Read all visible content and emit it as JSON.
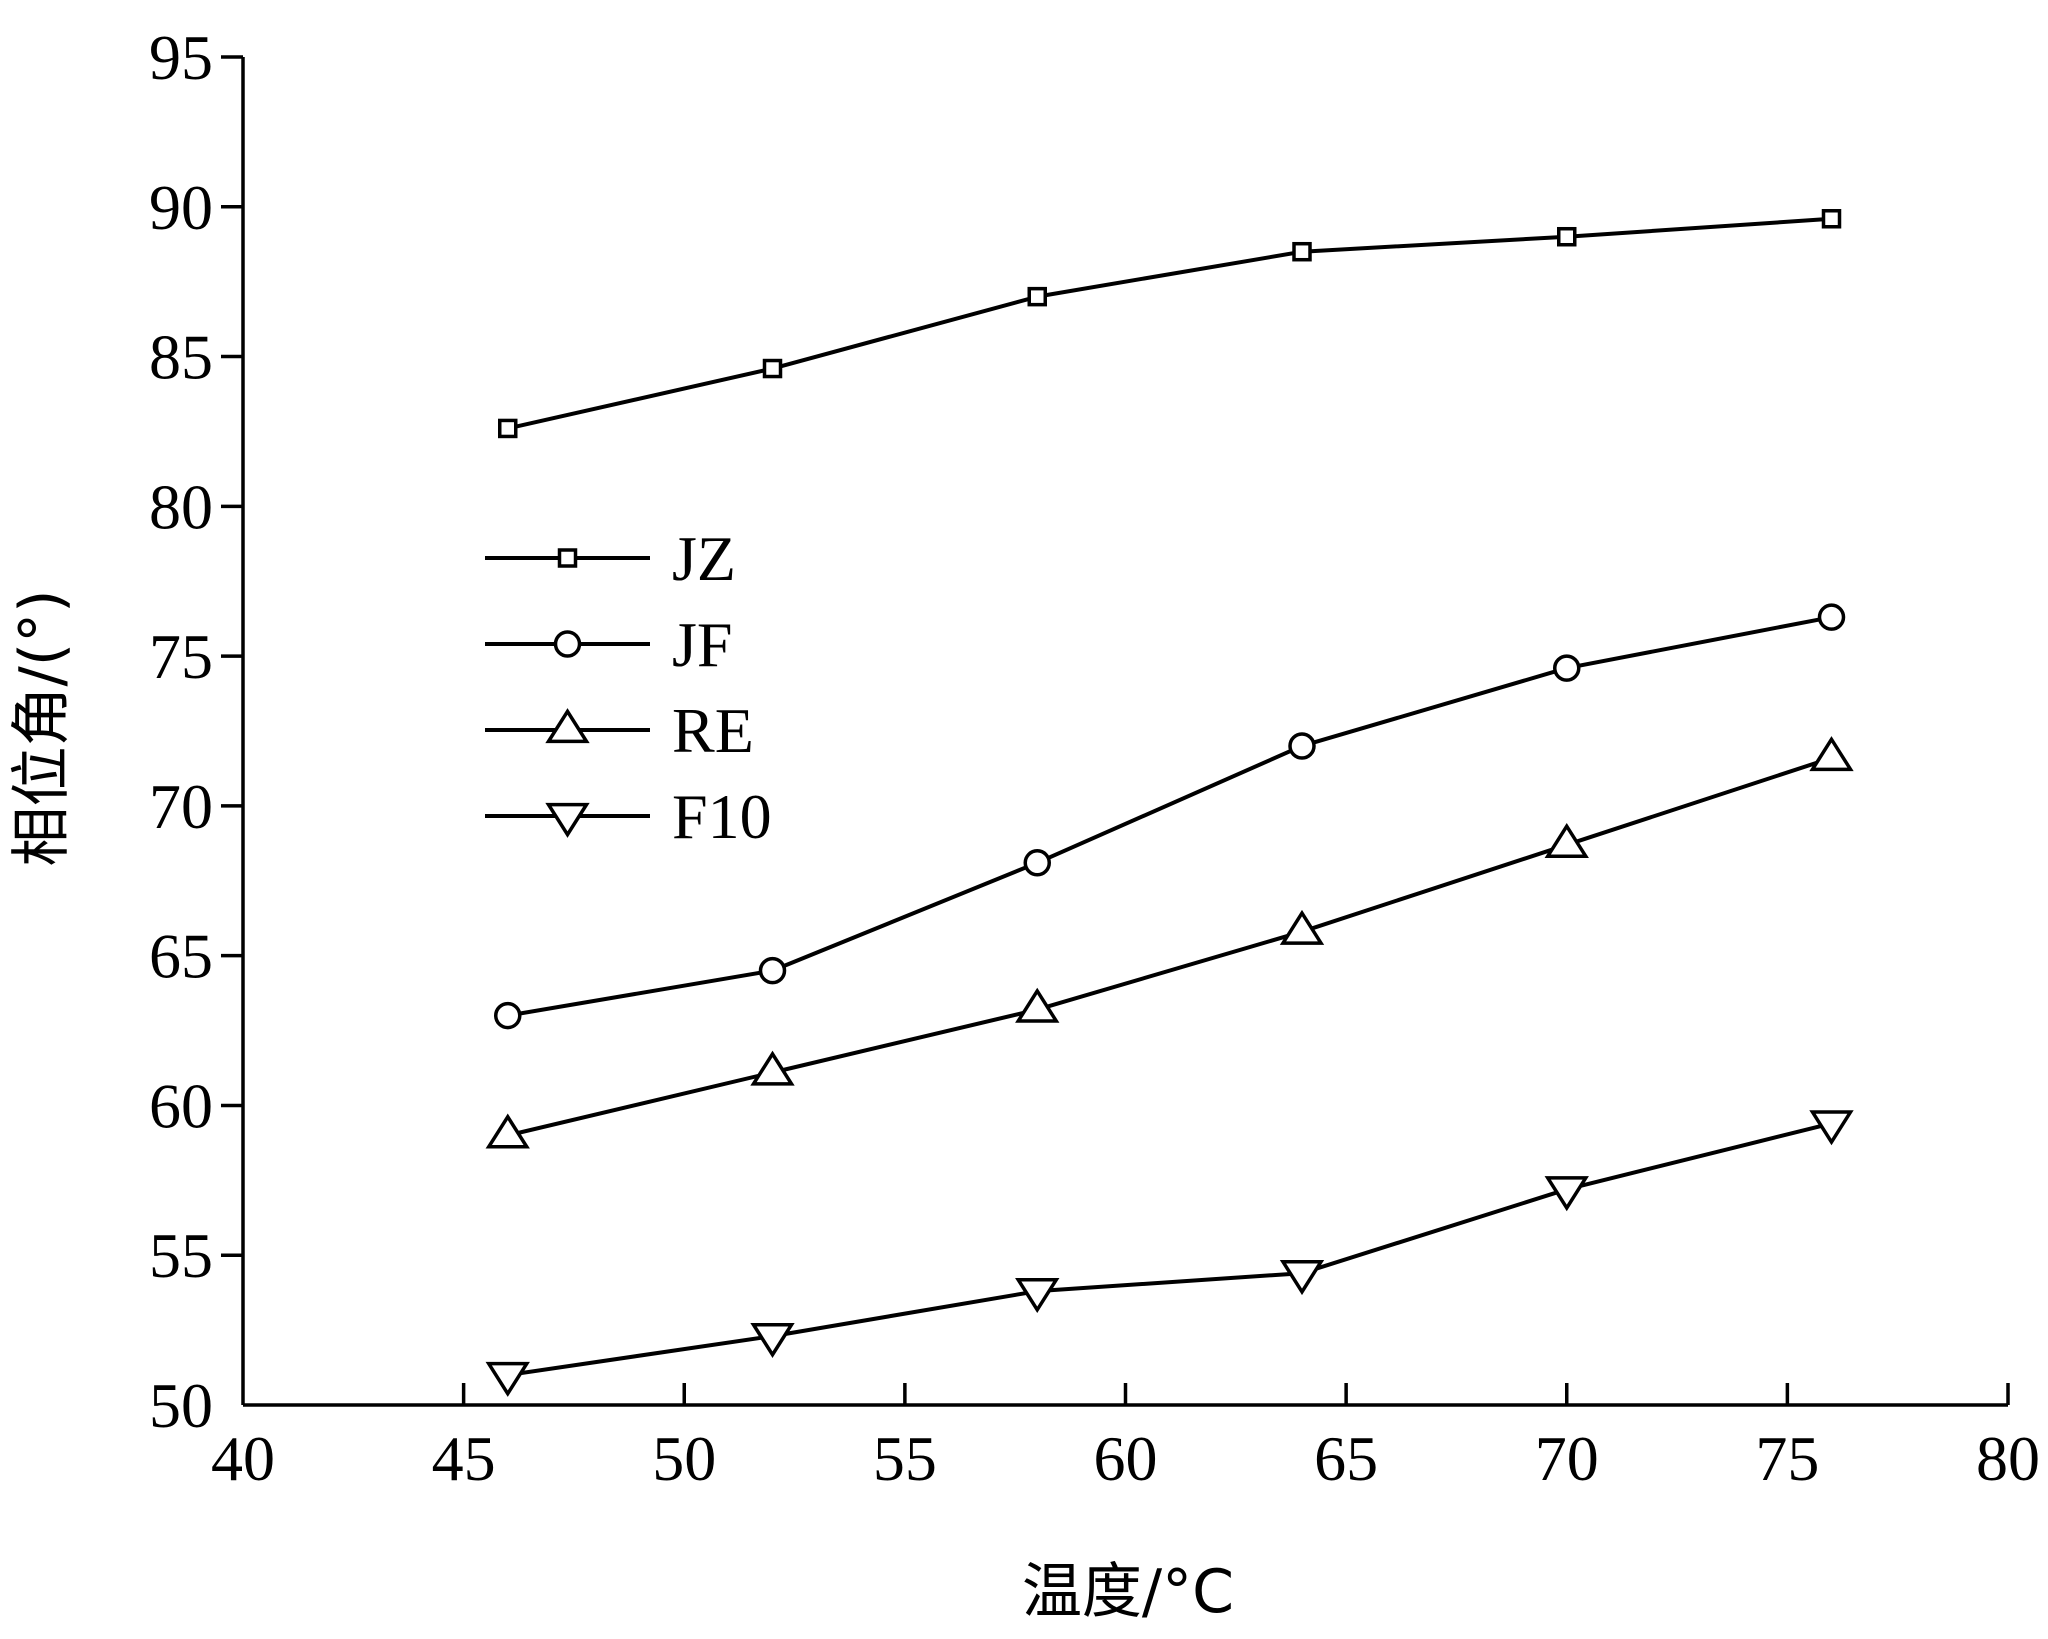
{
  "chart_data": {
    "type": "line",
    "xlabel": "温度/°C",
    "ylabel": "相位角/(°)",
    "xlim": [
      40,
      80
    ],
    "ylim": [
      50,
      95
    ],
    "xticks": [
      40,
      45,
      50,
      55,
      60,
      65,
      70,
      75,
      80
    ],
    "yticks": [
      50,
      55,
      60,
      65,
      70,
      75,
      80,
      85,
      90,
      95
    ],
    "legend_position": "center-left",
    "grid": false,
    "x": [
      46,
      52,
      58,
      64,
      70,
      76
    ],
    "series": [
      {
        "name": "JZ",
        "marker": "square",
        "values": [
          82.6,
          84.6,
          87.0,
          88.5,
          89.0,
          89.6
        ]
      },
      {
        "name": "JF",
        "marker": "circle",
        "values": [
          63.0,
          64.5,
          68.1,
          72.0,
          74.6,
          76.3
        ]
      },
      {
        "name": "RE",
        "marker": "triangle-up",
        "values": [
          59.0,
          61.1,
          63.2,
          65.8,
          68.7,
          71.6
        ]
      },
      {
        "name": "F10",
        "marker": "triangle-down",
        "values": [
          51.0,
          52.3,
          53.8,
          54.4,
          57.2,
          59.4
        ]
      }
    ]
  }
}
